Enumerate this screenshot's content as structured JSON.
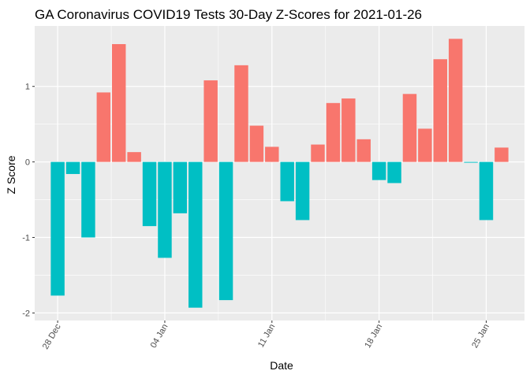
{
  "chart_data": {
    "type": "bar",
    "title": "GA Coronavirus COVID19 Tests 30-Day Z-Scores for 2021-01-26",
    "xlabel": "Date",
    "ylabel": "Z Score",
    "x": [
      "2020-12-28",
      "2020-12-29",
      "2020-12-30",
      "2020-12-31",
      "2021-01-01",
      "2021-01-02",
      "2021-01-03",
      "2021-01-04",
      "2021-01-05",
      "2021-01-06",
      "2021-01-07",
      "2021-01-08",
      "2021-01-09",
      "2021-01-10",
      "2021-01-11",
      "2021-01-12",
      "2021-01-13",
      "2021-01-14",
      "2021-01-15",
      "2021-01-16",
      "2021-01-17",
      "2021-01-18",
      "2021-01-19",
      "2021-01-20",
      "2021-01-21",
      "2021-01-22",
      "2021-01-23",
      "2021-01-24",
      "2021-01-25",
      "2021-01-26"
    ],
    "values": [
      -1.77,
      -0.16,
      -1.0,
      0.92,
      1.56,
      0.13,
      -0.85,
      -1.27,
      -0.68,
      -1.93,
      1.08,
      -1.83,
      1.28,
      0.48,
      0.2,
      -0.52,
      -0.77,
      0.23,
      0.78,
      0.84,
      0.3,
      -0.24,
      -0.28,
      0.9,
      0.44,
      1.36,
      1.63,
      -0.01,
      -0.77,
      0.19
    ],
    "x_ticks": [
      {
        "date": "2020-12-28",
        "label": "28 Dec"
      },
      {
        "date": "2021-01-04",
        "label": "04 Jan"
      },
      {
        "date": "2021-01-11",
        "label": "11 Jan"
      },
      {
        "date": "2021-01-18",
        "label": "18 Jan"
      },
      {
        "date": "2021-01-25",
        "label": "25 Jan"
      }
    ],
    "y_ticks": [
      -2,
      -1,
      0,
      1
    ],
    "ylim": [
      -2.1,
      1.8
    ],
    "grid": true,
    "legend": "none",
    "colors": {
      "positive": "#f8766d",
      "negative": "#00bfc4",
      "panel": "#ebebeb",
      "grid": "#ffffff"
    }
  }
}
